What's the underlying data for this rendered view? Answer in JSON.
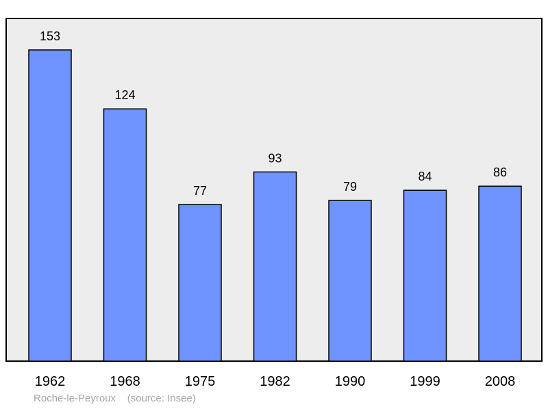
{
  "chart_data": {
    "type": "bar",
    "categories": [
      "1962",
      "1968",
      "1975",
      "1982",
      "1990",
      "1999",
      "2008"
    ],
    "values": [
      153,
      124,
      77,
      93,
      79,
      84,
      86
    ],
    "ylim": [
      0,
      153
    ],
    "grid": false,
    "bar_color": "#7094ff",
    "plot_background": "#ededed",
    "show_data_labels": true
  },
  "caption": {
    "place": "Roche-le-Peyroux",
    "source": "(source: Insee)"
  }
}
